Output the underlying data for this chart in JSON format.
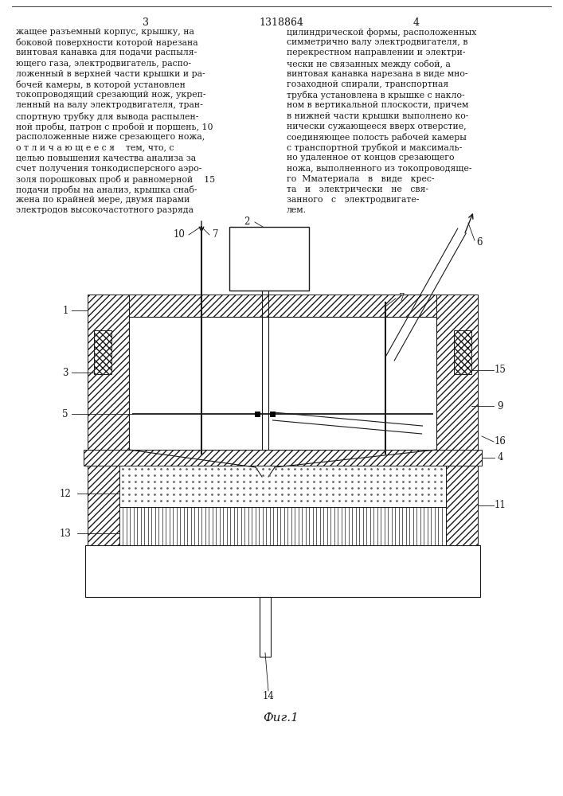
{
  "bg_color": "#ffffff",
  "line_color": "#1a1a1a",
  "title": "1318864",
  "page_left": "3",
  "page_right": "4",
  "fig_label": "Фиг.1",
  "left_col_lines": [
    "жащее разъемный корпус, крышку, на",
    "боковой поверхности которой нарезана",
    "винтовая канавка для подачи распыля-",
    "ющего газа, электродвигатель, распо-",
    "ложенный в верхней части крышки и ра-",
    "бочей камеры, в которой установлен",
    "токопроводящий срезающий нож, укреп-",
    "ленный на валу электродвигателя, тран-",
    "спортную трубку для вывода распылен-",
    "ной пробы, патрон с пробой и поршень, 10",
    "расположенные ниже срезающего ножа,",
    "о т л и ч а ю щ е е с я    тем, что, с",
    "целью повышения качества анализа за",
    "счет получения тонкодисперсного аэро-",
    "золя порошковых проб и равномерной    15",
    "подачи пробы на анализ, крышка снаб-",
    "жена по крайней мере, двумя парами",
    "электродов высокочастотного разряда"
  ],
  "right_col_lines": [
    "цилиндрической формы, расположенных",
    "симметрично валу электродвигателя, в",
    "перекрестном направлении и электри-",
    "чески не связанных между собой, а",
    "винтовая канавка нарезана в виде мно-",
    "гозаходной спирали, транспортная",
    "трубка установлена в крышке с накло-",
    "ном в вертикальной плоскости, причем",
    "в нижней части крышки выполнено ко-",
    "нически сужающееся вверх отверстие,",
    "соединяющее полость рабочей камеры",
    "с транспортной трубкой и максималь-",
    "но удаленное от концов срезающего",
    "ножа, выполненного из токопроводяще-",
    "го  Мматериала   в   виде   крес-",
    "та   и   электрически   не   свя-",
    "занного   с   электродвигате-",
    "лем."
  ]
}
